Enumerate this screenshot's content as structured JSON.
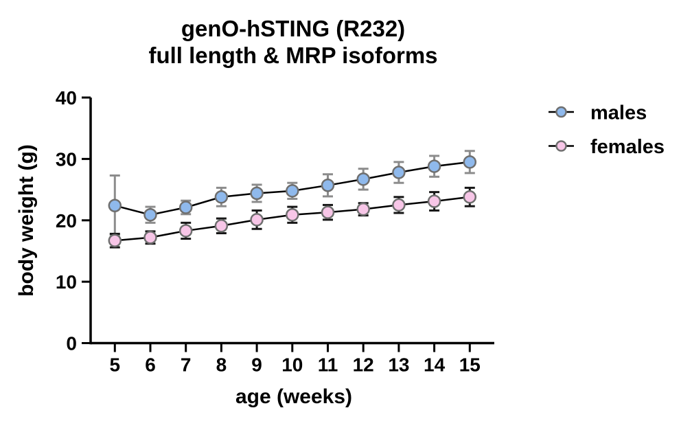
{
  "chart_data": {
    "type": "line",
    "title_line1": "genO-hSTING (R232)",
    "title_line2": "full length & MRP isoforms",
    "xlabel": "age (weeks)",
    "ylabel": "body weight (g)",
    "x": [
      5,
      6,
      7,
      8,
      9,
      10,
      11,
      12,
      13,
      14,
      15
    ],
    "xticks": [
      5,
      6,
      7,
      8,
      9,
      10,
      11,
      12,
      13,
      14,
      15
    ],
    "ylim": [
      0,
      40
    ],
    "yticks": [
      0,
      10,
      20,
      30,
      40
    ],
    "grid": false,
    "legend_position": "right",
    "axis_color": "#000000",
    "series": [
      {
        "name": "males",
        "color": "#8FB9EC",
        "marker_outline": "#6F6F6F",
        "line_color": "#000000",
        "error_color": "#8C8C8C",
        "values": [
          22.4,
          20.9,
          22.1,
          23.8,
          24.4,
          24.8,
          25.7,
          26.7,
          27.8,
          28.8,
          29.5
        ],
        "errors": [
          4.9,
          1.3,
          1.1,
          1.5,
          1.4,
          1.3,
          1.8,
          1.7,
          1.7,
          1.7,
          1.8
        ]
      },
      {
        "name": "females",
        "color": "#F7C6E7",
        "marker_outline": "#6F6F6F",
        "line_color": "#000000",
        "error_color": "#161616",
        "values": [
          16.7,
          17.2,
          18.3,
          19.1,
          20.1,
          20.9,
          21.3,
          21.8,
          22.5,
          23.1,
          23.8
        ],
        "errors": [
          1.1,
          1.0,
          1.3,
          1.2,
          1.5,
          1.3,
          1.2,
          1.0,
          1.3,
          1.5,
          1.5
        ]
      }
    ]
  }
}
